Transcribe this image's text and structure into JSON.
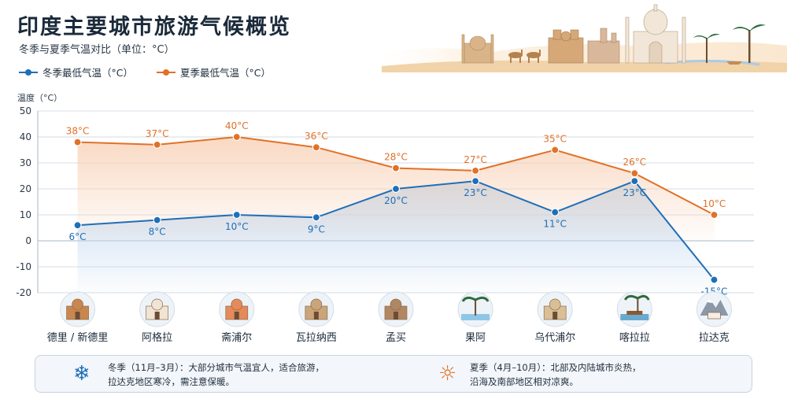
{
  "header": {
    "title": "印度主要城市旅游气候概览",
    "subtitle": "冬季与夏季气温对比（单位：°C）"
  },
  "colors": {
    "winter": "#1f6fb8",
    "summer": "#e07228",
    "winter_fill": "#bcd4ee",
    "summer_fill": "#f8d2b8",
    "grid": "#d5dde6",
    "axis_text": "#2b3948"
  },
  "chart_data": {
    "type": "line",
    "ylabel": "温度（°C）",
    "ylim": [
      -20,
      50
    ],
    "yticks": [
      50,
      40,
      30,
      20,
      10,
      0,
      -10,
      -20
    ],
    "grid": true,
    "legend_position": "top-left",
    "categories": [
      "德里 / 新德里",
      "阿格拉",
      "斋浦尔",
      "瓦拉纳西",
      "孟买",
      "果阿",
      "乌代浦尔",
      "喀拉拉",
      "拉达克"
    ],
    "series": [
      {
        "name": "冬季最低气温（°C）",
        "key": "winter",
        "values": [
          6,
          8,
          10,
          9,
          20,
          23,
          11,
          23,
          -15
        ],
        "labels": [
          "6°C",
          "8°C",
          "10°C",
          "9°C",
          "20°C",
          "23°C",
          "11°C",
          "23°C",
          "-15°C"
        ]
      },
      {
        "name": "夏季最低气温（°C）",
        "key": "summer",
        "values": [
          38,
          37,
          40,
          36,
          28,
          27,
          35,
          26,
          10
        ],
        "labels": [
          "38°C",
          "37°C",
          "40°C",
          "36°C",
          "28°C",
          "27°C",
          "35°C",
          "26°C",
          "10°C"
        ]
      }
    ],
    "category_icons": [
      "india-gate-icon",
      "taj-mahal-icon",
      "hawa-mahal-icon",
      "ghat-temple-icon",
      "gateway-of-india-icon",
      "palm-beach-icon",
      "lake-palace-icon",
      "houseboat-palm-icon",
      "mountain-monastery-icon"
    ]
  },
  "footer": {
    "winter_icon": "snowflake-icon",
    "winter_line1": "冬季（11月–3月）：大部分城市气温宜人，适合旅游，",
    "winter_line2": "拉达克地区寒冷，需注意保暖。",
    "summer_icon": "sun-icon",
    "summer_line1": "夏季（4月–10月）：北部及内陆城市炎热，",
    "summer_line2": "沿海及南部地区相对凉爽。"
  }
}
